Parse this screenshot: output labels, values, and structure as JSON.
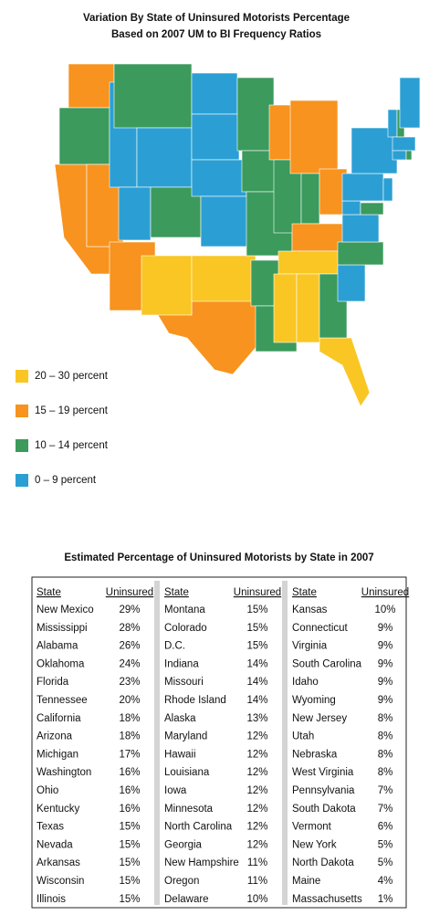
{
  "title": [
    "Variation By State of Uninsured Motorists Percentage",
    "Based on 2007 UM to BI Frequency Ratios"
  ],
  "legend": [
    {
      "label": "20 – 30 percent",
      "color": "#f9c623"
    },
    {
      "label": "15 – 19 percent",
      "color": "#f7931e"
    },
    {
      "label": "10 – 14 percent",
      "color": "#3b9a5c"
    },
    {
      "label": "0 – 9 percent",
      "color": "#2b9fd4"
    }
  ],
  "table": {
    "title": "Estimated Percentage of Uninsured Motorists by State in 2007",
    "header": [
      "State",
      "Uninsured",
      "State",
      "Uninsured",
      "State",
      "Uninsured"
    ],
    "rows": [
      [
        "New Mexico",
        "29%",
        "Montana",
        "15%",
        "Kansas",
        "10%"
      ],
      [
        "Mississippi",
        "28%",
        "Colorado",
        "15%",
        "Connecticut",
        "9%"
      ],
      [
        "Alabama",
        "26%",
        "D.C.",
        "15%",
        "Virginia",
        "9%"
      ],
      [
        "Oklahoma",
        "24%",
        "Indiana",
        "14%",
        "South Carolina",
        "9%"
      ],
      [
        "Florida",
        "23%",
        "Missouri",
        "14%",
        "Idaho",
        "9%"
      ],
      [
        "Tennessee",
        "20%",
        "Rhode Island",
        "14%",
        "Wyoming",
        "9%"
      ],
      [
        "California",
        "18%",
        "Alaska",
        "13%",
        "New Jersey",
        "8%"
      ],
      [
        "Arizona",
        "18%",
        "Maryland",
        "12%",
        "Utah",
        "8%"
      ],
      [
        "Michigan",
        "17%",
        "Hawaii",
        "12%",
        "Nebraska",
        "8%"
      ],
      [
        "Washington",
        "16%",
        "Louisiana",
        "12%",
        "West Virginia",
        "8%"
      ],
      [
        "Ohio",
        "16%",
        "Iowa",
        "12%",
        "Pennsylvania",
        "7%"
      ],
      [
        "Kentucky",
        "16%",
        "Minnesota",
        "12%",
        "South Dakota",
        "7%"
      ],
      [
        "Texas",
        "15%",
        "North Carolina",
        "12%",
        "Vermont",
        "6%"
      ],
      [
        "Nevada",
        "15%",
        "Georgia",
        "12%",
        "New York",
        "5%"
      ],
      [
        "Arkansas",
        "15%",
        "New Hampshire",
        "11%",
        "North Dakota",
        "5%"
      ],
      [
        "Wisconsin",
        "15%",
        "Oregon",
        "11%",
        "Maine",
        "4%"
      ],
      [
        "Illinois",
        "15%",
        "Delaware",
        "10%",
        "Massachusetts",
        "1%"
      ]
    ]
  }
}
